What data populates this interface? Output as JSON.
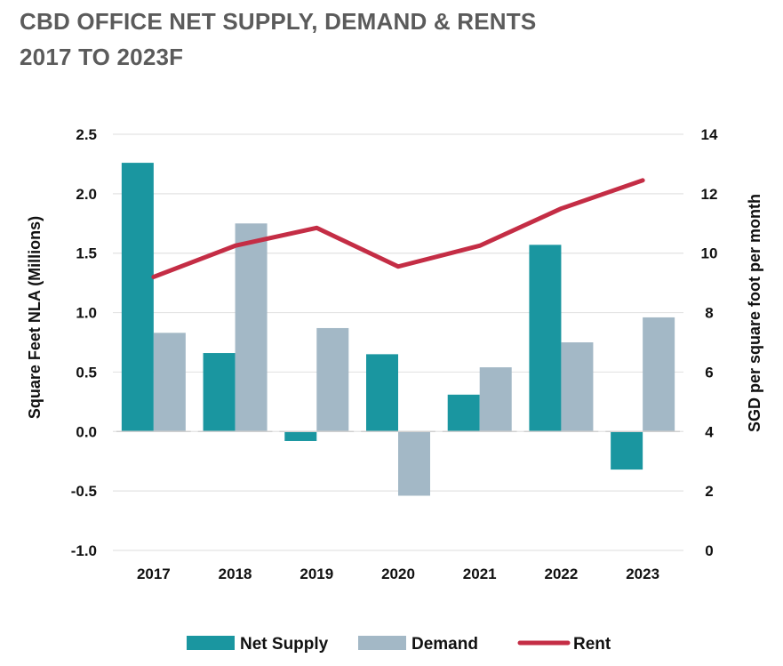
{
  "title": {
    "line1": "CBD OFFICE NET SUPPLY, DEMAND & RENTS",
    "line2": "2017 TO 2023F"
  },
  "colors": {
    "net_supply": "#1a96a0",
    "demand": "#a3b8c6",
    "rent": "#c42d45",
    "gridline": "#e3e3e3",
    "title": "#5b5b5b"
  },
  "chart_data": {
    "type": "bar",
    "categories": [
      "2017",
      "2018",
      "2019",
      "2020",
      "2021",
      "2022",
      "2023"
    ],
    "series": [
      {
        "name": "Net Supply",
        "type": "bar",
        "axis": "left",
        "values": [
          2.26,
          0.66,
          -0.08,
          0.65,
          0.31,
          1.57,
          -0.32
        ]
      },
      {
        "name": "Demand",
        "type": "bar",
        "axis": "left",
        "values": [
          0.83,
          1.75,
          0.87,
          -0.54,
          0.54,
          0.75,
          0.96
        ]
      },
      {
        "name": "Rent",
        "type": "line",
        "axis": "right",
        "values": [
          9.2,
          10.25,
          10.85,
          9.55,
          10.25,
          11.5,
          12.45
        ]
      }
    ],
    "ylabel": "Square Feet NLA (Millions)",
    "y2label": "SGD per square foot per month",
    "ylim": [
      -1.0,
      2.5
    ],
    "y2lim": [
      0,
      14
    ],
    "yticks": [
      "2.5",
      "2.0",
      "1.5",
      "1.0",
      "0.5",
      "0.0",
      "-0.5",
      "-1.0"
    ],
    "y2ticks": [
      "14",
      "12",
      "10",
      "8",
      "6",
      "4",
      "2",
      "0"
    ],
    "grid": true,
    "legend_position": "bottom"
  }
}
